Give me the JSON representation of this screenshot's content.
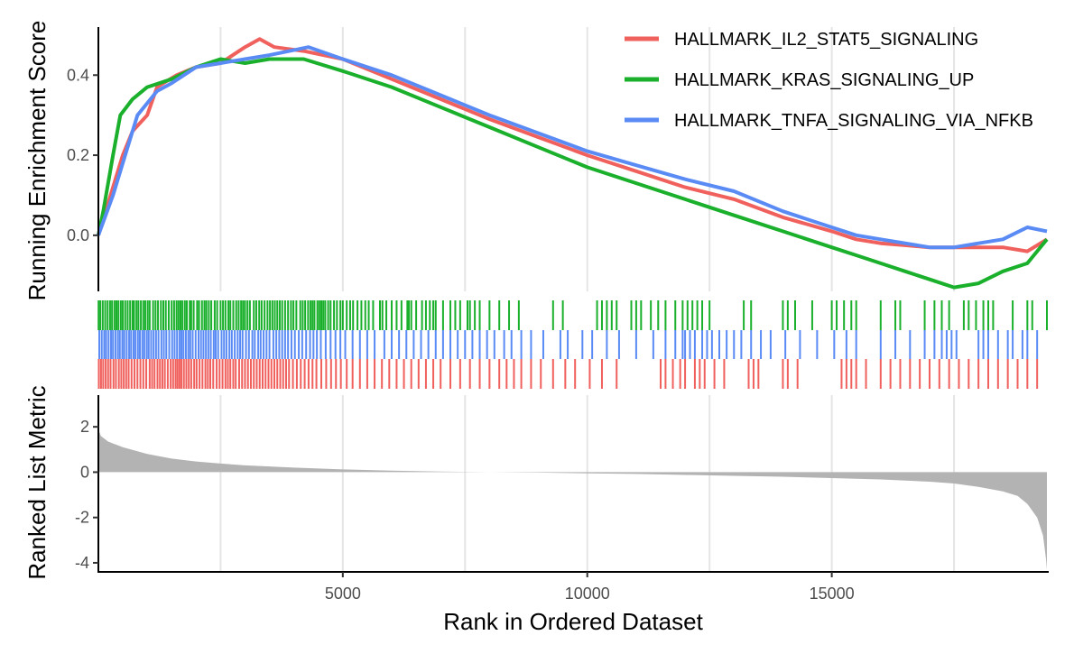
{
  "chart_data": {
    "type": "line",
    "x_range": [
      1,
      19400
    ],
    "xlabel": "Rank in Ordered Dataset",
    "x_ticks": [
      5000,
      10000,
      15000
    ],
    "x_tick_labels": [
      "5000",
      "10000",
      "15000"
    ],
    "grid": "vertical",
    "legend_position": "top-right",
    "colors": {
      "il2": "#F0605D",
      "kras": "#1AB02C",
      "tnfa": "#5A8BF5",
      "metric_fill": "#b3b3b3",
      "grid": "#e5e5e5"
    },
    "enrichment": {
      "ylabel": "Running Enrichment Score",
      "ylim": [
        -0.14,
        0.52
      ],
      "y_ticks": [
        0.4,
        0.2,
        0.0
      ],
      "y_tick_labels": [
        "0.4",
        "0.2",
        "0.0"
      ],
      "series": [
        {
          "key": "il2",
          "name": "HALLMARK_IL2_STAT5_SIGNALING",
          "points": [
            [
              1,
              0.0
            ],
            [
              250,
              0.1
            ],
            [
              500,
              0.2
            ],
            [
              700,
              0.26
            ],
            [
              1000,
              0.3
            ],
            [
              1200,
              0.37
            ],
            [
              1600,
              0.4
            ],
            [
              2000,
              0.42
            ],
            [
              2500,
              0.43
            ],
            [
              3000,
              0.47
            ],
            [
              3300,
              0.49
            ],
            [
              3600,
              0.47
            ],
            [
              4200,
              0.46
            ],
            [
              5000,
              0.44
            ],
            [
              6000,
              0.39
            ],
            [
              7000,
              0.34
            ],
            [
              8000,
              0.29
            ],
            [
              9000,
              0.245
            ],
            [
              10000,
              0.2
            ],
            [
              11000,
              0.16
            ],
            [
              12000,
              0.12
            ],
            [
              13000,
              0.09
            ],
            [
              14000,
              0.045
            ],
            [
              15000,
              0.01
            ],
            [
              15500,
              -0.01
            ],
            [
              16000,
              -0.02
            ],
            [
              16500,
              -0.025
            ],
            [
              17000,
              -0.03
            ],
            [
              17500,
              -0.03
            ],
            [
              18000,
              -0.03
            ],
            [
              18500,
              -0.03
            ],
            [
              19000,
              -0.04
            ],
            [
              19400,
              -0.01
            ]
          ]
        },
        {
          "key": "kras",
          "name": "HALLMARK_KRAS_SIGNALING_UP",
          "points": [
            [
              1,
              0.0
            ],
            [
              100,
              0.06
            ],
            [
              300,
              0.2
            ],
            [
              450,
              0.3
            ],
            [
              700,
              0.34
            ],
            [
              1000,
              0.37
            ],
            [
              1500,
              0.39
            ],
            [
              2000,
              0.42
            ],
            [
              2500,
              0.44
            ],
            [
              3000,
              0.43
            ],
            [
              3500,
              0.44
            ],
            [
              4200,
              0.44
            ],
            [
              5000,
              0.41
            ],
            [
              6000,
              0.37
            ],
            [
              7000,
              0.32
            ],
            [
              8000,
              0.27
            ],
            [
              9000,
              0.22
            ],
            [
              10000,
              0.17
            ],
            [
              11000,
              0.13
            ],
            [
              12000,
              0.09
            ],
            [
              13000,
              0.05
            ],
            [
              14000,
              0.01
            ],
            [
              15000,
              -0.03
            ],
            [
              15500,
              -0.05
            ],
            [
              16000,
              -0.07
            ],
            [
              16500,
              -0.09
            ],
            [
              17000,
              -0.11
            ],
            [
              17500,
              -0.13
            ],
            [
              18000,
              -0.12
            ],
            [
              18500,
              -0.09
            ],
            [
              19000,
              -0.07
            ],
            [
              19400,
              -0.01
            ]
          ]
        },
        {
          "key": "tnfa",
          "name": "HALLMARK_TNFA_SIGNALING_VIA_NFKB",
          "points": [
            [
              1,
              0.0
            ],
            [
              300,
              0.1
            ],
            [
              500,
              0.18
            ],
            [
              800,
              0.3
            ],
            [
              1200,
              0.36
            ],
            [
              1500,
              0.38
            ],
            [
              2000,
              0.42
            ],
            [
              2500,
              0.43
            ],
            [
              3000,
              0.44
            ],
            [
              3500,
              0.45
            ],
            [
              4300,
              0.47
            ],
            [
              5000,
              0.44
            ],
            [
              6000,
              0.4
            ],
            [
              7000,
              0.35
            ],
            [
              8000,
              0.3
            ],
            [
              9000,
              0.255
            ],
            [
              10000,
              0.21
            ],
            [
              11000,
              0.175
            ],
            [
              12000,
              0.14
            ],
            [
              13000,
              0.11
            ],
            [
              14000,
              0.06
            ],
            [
              15000,
              0.02
            ],
            [
              15500,
              0.0
            ],
            [
              16000,
              -0.01
            ],
            [
              16500,
              -0.02
            ],
            [
              17000,
              -0.03
            ],
            [
              17500,
              -0.03
            ],
            [
              18000,
              -0.02
            ],
            [
              18500,
              -0.01
            ],
            [
              19000,
              0.02
            ],
            [
              19400,
              0.01
            ]
          ]
        }
      ]
    },
    "hit_rows": [
      {
        "key": "kras",
        "hits": [
          5,
          40,
          90,
          140,
          190,
          240,
          280,
          330,
          370,
          410,
          460,
          500,
          550,
          600,
          650,
          700,
          730,
          780,
          820,
          870,
          920,
          960,
          1010,
          1050,
          1120,
          1170,
          1220,
          1280,
          1330,
          1380,
          1440,
          1500,
          1550,
          1600,
          1640,
          1680,
          1720,
          1770,
          1810,
          1870,
          1900,
          1950,
          2020,
          2060,
          2120,
          2170,
          2210,
          2260,
          2310,
          2380,
          2430,
          2500,
          2550,
          2600,
          2660,
          2700,
          2760,
          2820,
          2870,
          2920,
          2960,
          3000,
          3050,
          3100,
          3180,
          3230,
          3290,
          3340,
          3400,
          3460,
          3510,
          3560,
          3610,
          3660,
          3710,
          3760,
          3820,
          3880,
          3940,
          3990,
          4050,
          4130,
          4180,
          4230,
          4290,
          4340,
          4380,
          4420,
          4480,
          4520,
          4560,
          4600,
          4640,
          4700,
          4750,
          4820,
          4880,
          4950,
          5000,
          5080,
          5150,
          5210,
          5300,
          5380,
          5460,
          5530,
          5620,
          5760,
          5810,
          5890,
          6000,
          6100,
          6200,
          6320,
          6350,
          6400,
          6500,
          6620,
          6700,
          6780,
          6850,
          6900,
          7050,
          7200,
          7300,
          7400,
          7550,
          7600,
          7700,
          7800,
          8000,
          8200,
          8400,
          8600,
          9300,
          9500,
          10200,
          10300,
          10400,
          10500,
          10600,
          10900,
          11000,
          11100,
          11300,
          11450,
          11600,
          11800,
          11950,
          12050,
          12150,
          12250,
          12350,
          12500,
          13200,
          13350,
          14000,
          14100,
          14250,
          14600,
          15000,
          15100,
          15250,
          15400,
          15500,
          16000,
          16300,
          16400,
          16900,
          17100,
          17250,
          17400,
          17700,
          17800,
          17950,
          18100,
          18200,
          18300,
          18700,
          19000,
          19100,
          19400
        ]
      },
      {
        "key": "tnfa",
        "hits": [
          20,
          70,
          120,
          160,
          210,
          260,
          300,
          350,
          400,
          440,
          490,
          530,
          580,
          630,
          670,
          720,
          760,
          810,
          850,
          900,
          940,
          990,
          1030,
          1080,
          1130,
          1180,
          1230,
          1290,
          1340,
          1390,
          1450,
          1510,
          1560,
          1610,
          1660,
          1700,
          1740,
          1790,
          1840,
          1880,
          1930,
          1990,
          2050,
          2100,
          2150,
          2200,
          2250,
          2300,
          2360,
          2400,
          2450,
          2520,
          2570,
          2620,
          2680,
          2730,
          2790,
          2850,
          2900,
          2950,
          3020,
          3080,
          3150,
          3200,
          3270,
          3320,
          3380,
          3440,
          3500,
          3580,
          3640,
          3700,
          3760,
          3820,
          3880,
          3950,
          4020,
          4100,
          4170,
          4250,
          4330,
          4400,
          4470,
          4550,
          4650,
          4750,
          4850,
          4950,
          5050,
          5200,
          5350,
          5500,
          5650,
          5850,
          6000,
          6150,
          6300,
          6450,
          6600,
          6750,
          6900,
          7050,
          7200,
          7350,
          7500,
          7650,
          7800,
          7950,
          8100,
          8300,
          8450,
          8650,
          8850,
          9100,
          9450,
          9600,
          9900,
          10100,
          10400,
          10650,
          11000,
          11350,
          11600,
          11800,
          11950,
          12000,
          12100,
          12200,
          12350,
          12450,
          12550,
          12700,
          12850,
          13000,
          13150,
          13350,
          13550,
          13750,
          14050,
          14350,
          14700,
          15050,
          15300,
          15500,
          16000,
          16300,
          16600,
          16900,
          17100,
          17250,
          17350,
          17450,
          17550,
          18000,
          18100,
          18200,
          18400,
          18600,
          18700,
          18900,
          19000,
          19200
        ]
      },
      {
        "key": "il2",
        "hits": [
          10,
          55,
          100,
          150,
          200,
          250,
          310,
          360,
          420,
          470,
          520,
          570,
          620,
          680,
          740,
          800,
          860,
          920,
          980,
          1050,
          1100,
          1150,
          1210,
          1260,
          1310,
          1360,
          1420,
          1480,
          1530,
          1580,
          1620,
          1660,
          1700,
          1750,
          1800,
          1850,
          1900,
          1960,
          2010,
          2070,
          2130,
          2190,
          2240,
          2290,
          2350,
          2420,
          2480,
          2540,
          2600,
          2650,
          2700,
          2760,
          2810,
          2880,
          2940,
          3000,
          3060,
          3120,
          3180,
          3240,
          3300,
          3360,
          3420,
          3480,
          3540,
          3600,
          3660,
          3720,
          3780,
          3840,
          3900,
          3980,
          4060,
          4140,
          4220,
          4300,
          4380,
          4460,
          4560,
          4660,
          4760,
          4860,
          4960,
          5080,
          5200,
          5350,
          5500,
          5650,
          5800,
          5950,
          6100,
          6250,
          6400,
          6550,
          6700,
          6850,
          7000,
          7200,
          7400,
          7600,
          7800,
          8000,
          8200,
          8350,
          8500,
          8650,
          8850,
          9050,
          9300,
          9550,
          9750,
          10050,
          10300,
          10600,
          11500,
          11600,
          11750,
          11900,
          12000,
          12200,
          12300,
          12400,
          12600,
          12800,
          13300,
          13400,
          13500,
          14000,
          14100,
          14300,
          15200,
          15300,
          15400,
          15500,
          15700,
          16000,
          16200,
          16400,
          16600,
          16800,
          17000,
          17200,
          17400,
          17600,
          17800,
          18000,
          18200,
          18400,
          18600,
          18800,
          19000,
          19200
        ]
      }
    ],
    "metric": {
      "ylabel": "Ranked List Metric",
      "ylim": [
        -4.4,
        3.4
      ],
      "y_ticks": [
        2,
        0,
        -2,
        -4
      ],
      "y_tick_labels": [
        "2",
        "0",
        "-2",
        "-4"
      ],
      "points": [
        [
          1,
          1.9
        ],
        [
          50,
          1.6
        ],
        [
          200,
          1.35
        ],
        [
          500,
          1.1
        ],
        [
          1000,
          0.8
        ],
        [
          1500,
          0.6
        ],
        [
          2000,
          0.47
        ],
        [
          2500,
          0.38
        ],
        [
          3000,
          0.3
        ],
        [
          4000,
          0.2
        ],
        [
          5000,
          0.12
        ],
        [
          6000,
          0.07
        ],
        [
          7000,
          0.03
        ],
        [
          8000,
          0.0
        ],
        [
          9000,
          -0.02
        ],
        [
          10000,
          -0.05
        ],
        [
          11000,
          -0.08
        ],
        [
          12000,
          -0.12
        ],
        [
          13000,
          -0.16
        ],
        [
          14000,
          -0.2
        ],
        [
          15000,
          -0.26
        ],
        [
          16000,
          -0.32
        ],
        [
          17000,
          -0.42
        ],
        [
          17500,
          -0.5
        ],
        [
          18000,
          -0.65
        ],
        [
          18500,
          -0.85
        ],
        [
          18800,
          -1.05
        ],
        [
          19000,
          -1.4
        ],
        [
          19200,
          -2.0
        ],
        [
          19320,
          -2.8
        ],
        [
          19380,
          -3.8
        ],
        [
          19400,
          -4.3
        ]
      ]
    }
  }
}
